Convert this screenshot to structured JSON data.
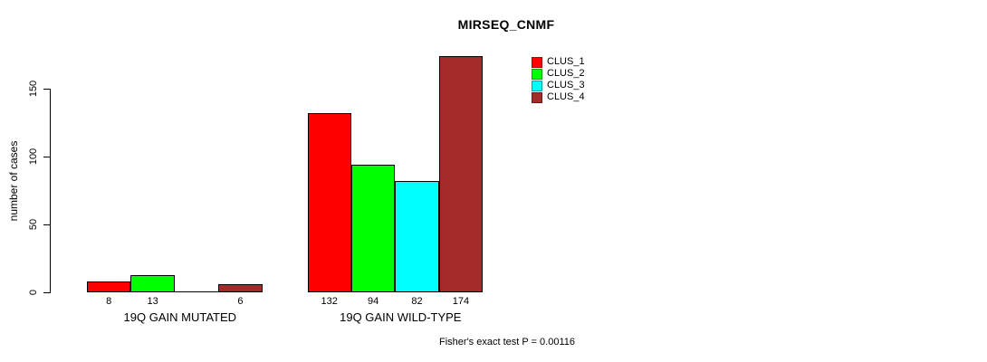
{
  "chart_data": {
    "type": "bar",
    "title": "MIRSEQ_CNMF",
    "ylabel": "number of cases",
    "xlabel": "",
    "ylim": [
      0,
      150
    ],
    "yticks": [
      0,
      50,
      100,
      150
    ],
    "grid": false,
    "legend_position": "top-right",
    "categories": [
      "19Q GAIN MUTATED",
      "19Q GAIN WILD-TYPE"
    ],
    "series": [
      {
        "name": "CLUS_1",
        "color": "#ff0000",
        "values": [
          8,
          132
        ]
      },
      {
        "name": "CLUS_2",
        "color": "#00ff00",
        "values": [
          13,
          94
        ]
      },
      {
        "name": "CLUS_3",
        "color": "#00ffff",
        "values": [
          0,
          82
        ]
      },
      {
        "name": "CLUS_4",
        "color": "#a52a2a",
        "values": [
          6,
          174
        ]
      }
    ],
    "bar_labels": [
      [
        "8",
        "13",
        "",
        "6"
      ],
      [
        "132",
        "94",
        "82",
        "174"
      ]
    ],
    "annotation": "Fisher's exact test P = 0.00116"
  }
}
